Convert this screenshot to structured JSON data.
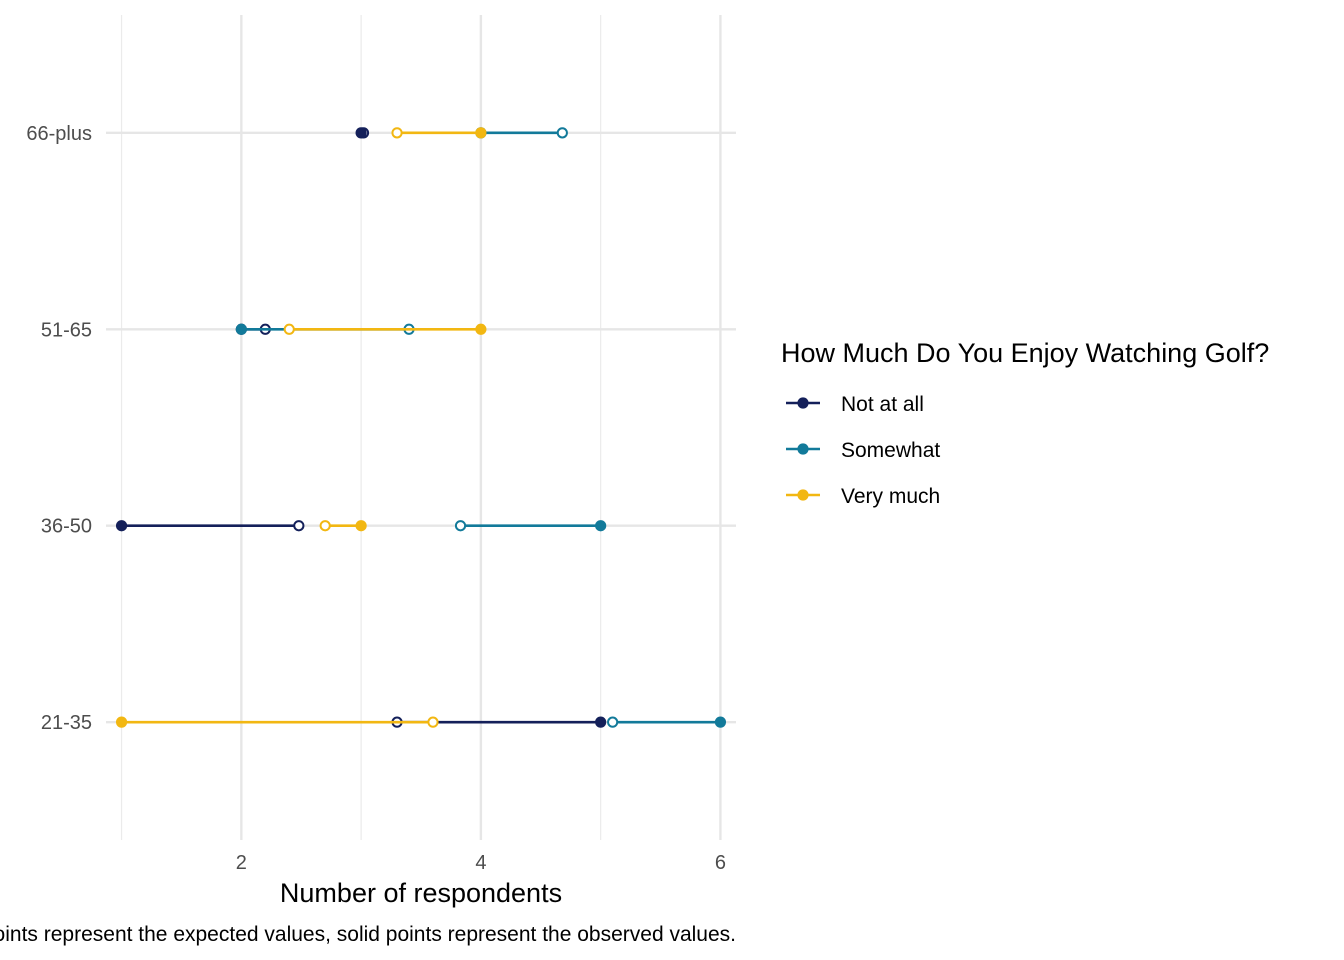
{
  "chart_data": {
    "type": "dumbbell",
    "xlabel": "Number of respondents",
    "ylabel": "",
    "xlim": [
      0.87,
      6.13
    ],
    "x_ticks": [
      2,
      4,
      6
    ],
    "x_minor_ticks": [
      1,
      3,
      5
    ],
    "categories": [
      "21-35",
      "36-50",
      "51-65",
      "66-plus"
    ],
    "grid": true,
    "caption": "Hollow points represent the expected values, solid points represent the observed values.",
    "legend": {
      "title": "How Much Do You Enjoy Watching Golf?",
      "placement": "right"
    },
    "series": [
      {
        "name": "Not at all",
        "color": "#14205a",
        "observed": [
          5,
          1,
          2,
          3
        ],
        "expected": [
          3.3,
          2.48,
          2.2,
          3.02
        ]
      },
      {
        "name": "Somewhat",
        "color": "#127a9a",
        "observed": [
          6,
          5,
          2,
          4
        ],
        "expected": [
          5.1,
          3.83,
          3.4,
          4.68
        ]
      },
      {
        "name": "Very much",
        "color": "#f2b712",
        "observed": [
          1,
          3,
          4,
          4
        ],
        "expected": [
          3.6,
          2.7,
          2.4,
          3.3
        ]
      }
    ]
  }
}
